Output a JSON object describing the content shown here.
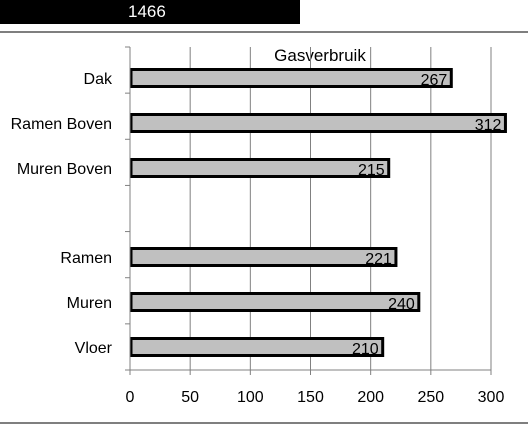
{
  "header": {
    "cell_value": "1466"
  },
  "chart_data": {
    "type": "bar",
    "orientation": "horizontal",
    "title": "Gasverbruik",
    "xlabel": "",
    "ylabel": "",
    "categories": [
      "Dak",
      "Ramen Boven",
      "Muren Boven",
      "",
      "Ramen",
      "Muren",
      "Vloer"
    ],
    "values": [
      267,
      312,
      215,
      null,
      221,
      240,
      210
    ],
    "xlim": [
      0,
      300
    ],
    "xticks": [
      0,
      50,
      100,
      150,
      200,
      250,
      300
    ],
    "grid": true,
    "legend": "none",
    "colors": {
      "bar_fill": "#c0c0c0",
      "bar_stroke": "#000000",
      "grid": "#808080"
    }
  }
}
